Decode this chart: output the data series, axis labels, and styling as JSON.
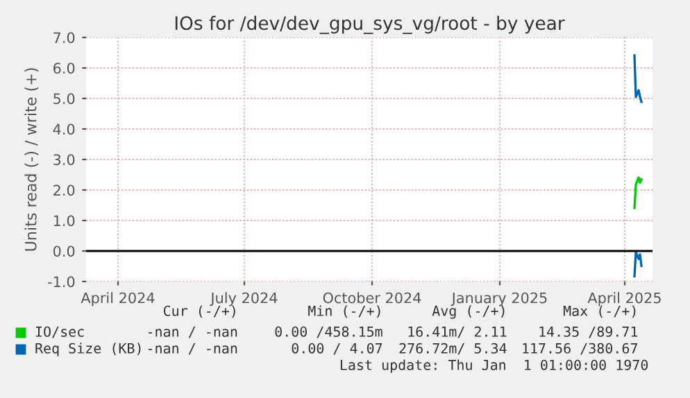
{
  "chart_data": {
    "type": "line",
    "title": "IOs for /dev/dev_gpu_sys_vg/root - by year",
    "ylabel": "Units read (-) / write (+)",
    "series": [
      {
        "name": "IO/sec",
        "color": "#00cc00",
        "x": [
          "2025-04-08",
          "2025-04-09",
          "2025-04-11",
          "2025-04-12",
          "2025-04-13"
        ],
        "values": [
          1.41,
          2.18,
          2.41,
          2.24,
          2.35
        ]
      },
      {
        "name": "Req Size (KB)",
        "color": "#0066b3",
        "x": [
          "2025-04-08",
          "2025-04-09",
          "2025-04-11",
          "2025-04-12",
          "2025-04-13"
        ],
        "values": [
          6.41,
          5.05,
          5.27,
          5.05,
          4.89
        ]
      },
      {
        "color": "#0066b3",
        "x": [
          "2025-04-08",
          "2025-04-09",
          "2025-04-11",
          "2025-04-12",
          "2025-04-13"
        ],
        "values": [
          -0.83,
          -0.03,
          -0.26,
          -0.11,
          -0.49
        ]
      }
    ],
    "xlim": [
      "2024-03-09",
      "2025-04-21"
    ],
    "xticks": [
      {
        "value": "2024-04-01",
        "label": "April 2024"
      },
      {
        "value": "2024-07-01",
        "label": "July 2024"
      },
      {
        "value": "2024-10-01",
        "label": "October 2024"
      },
      {
        "value": "2025-01-01",
        "label": "January 2025"
      },
      {
        "value": "2025-04-01",
        "label": "April 2025"
      }
    ],
    "ylim": [
      -1.0,
      7.0
    ],
    "yticks": [
      {
        "value": -1,
        "label": "-1.0"
      },
      {
        "value": 0,
        "label": "0.0"
      },
      {
        "value": 1,
        "label": "1.0"
      },
      {
        "value": 2,
        "label": "2.0"
      },
      {
        "value": 3,
        "label": "3.0"
      },
      {
        "value": 4,
        "label": "4.0"
      },
      {
        "value": 5,
        "label": "5.0"
      },
      {
        "value": 6,
        "label": "6.0"
      },
      {
        "value": 7,
        "label": "7.0"
      }
    ],
    "ref_lines": [
      {
        "axis": "y",
        "value": 0,
        "color": "#000000"
      }
    ],
    "grid": true,
    "legend": "bottom",
    "annotations": [
      "Cur (-/+)",
      "Min (-/+)",
      "Avg (-/+)",
      "Max (-/+)",
      "-nan / -nan",
      "0.00 /458.15m",
      "16.41m/ 2.11",
      "14.35 /89.71",
      "-nan / -nan",
      "0.00 / 4.07",
      "276.72m/ 5.34",
      "117.56 /380.67",
      "Last update: Thu Jan  1 01:00:00 1970"
    ]
  }
}
